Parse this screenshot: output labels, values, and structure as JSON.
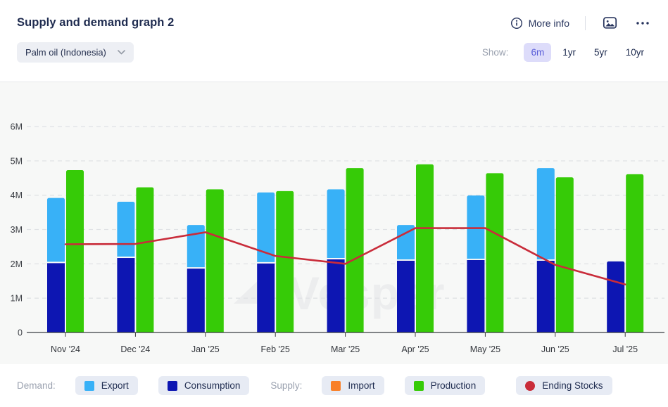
{
  "header": {
    "title": "Supply and demand graph 2",
    "more_info_label": "More info",
    "commodity_selector": {
      "value": "Palm oil (Indonesia)"
    },
    "show_label": "Show:",
    "ranges": [
      {
        "label": "6m",
        "selected": true
      },
      {
        "label": "1yr",
        "selected": false
      },
      {
        "label": "5yr",
        "selected": false
      },
      {
        "label": "10yr",
        "selected": false
      }
    ]
  },
  "watermark": {
    "text": "Vesper"
  },
  "colors": {
    "export": "#38b1f7",
    "consumption": "#0d16b2",
    "production": "#36cb07",
    "import": "#f98029",
    "ending_stocks": "#c92c3a",
    "gridline": "#e0e2e5",
    "axis": "#3a3d42",
    "tick_text": "#3c3f45",
    "chart_bg": "#f7f8f7"
  },
  "chart_data": {
    "type": "bar",
    "subtype": "stacked demand bars + production bar, with ending-stocks line overlay",
    "unit": "M",
    "categories": [
      "Nov '24",
      "Dec '24",
      "Jan '25",
      "Feb '25",
      "Mar '25",
      "Apr '25",
      "May '25",
      "Jun '25",
      "Jul '25"
    ],
    "series": [
      {
        "name": "Consumption",
        "type": "bar",
        "stack": "demand",
        "color_key": "consumption",
        "values": [
          2.02,
          2.17,
          1.86,
          2.01,
          2.13,
          2.09,
          2.11,
          2.09,
          2.07
        ]
      },
      {
        "name": "Export",
        "type": "bar",
        "stack": "demand",
        "color_key": "export",
        "values": [
          1.9,
          1.64,
          1.27,
          2.07,
          2.04,
          1.04,
          1.88,
          2.7,
          0
        ]
      },
      {
        "name": "Import",
        "type": "bar",
        "stack": "supply",
        "color_key": "import",
        "values": [
          0,
          0,
          0,
          0,
          0,
          0,
          0,
          0,
          0
        ]
      },
      {
        "name": "Production",
        "type": "bar",
        "stack": "supply",
        "color_key": "production",
        "values": [
          4.73,
          4.23,
          4.17,
          4.12,
          4.79,
          4.9,
          4.64,
          4.52,
          4.61
        ]
      },
      {
        "name": "Ending Stocks",
        "type": "line",
        "color_key": "ending_stocks",
        "values": [
          2.57,
          2.58,
          2.92,
          2.23,
          2.0,
          3.04,
          3.04,
          1.97,
          1.4
        ]
      }
    ],
    "ylim": [
      0,
      6
    ],
    "yticks": [
      "0",
      "1M",
      "2M",
      "3M",
      "4M",
      "5M",
      "6M"
    ],
    "grid": "horizontal dashed",
    "legend_position": "bottom"
  },
  "legend": {
    "demand_label": "Demand:",
    "supply_label": "Supply:",
    "items": [
      {
        "label": "Export",
        "color_key": "export",
        "shape": "square"
      },
      {
        "label": "Consumption",
        "color_key": "consumption",
        "shape": "square"
      },
      {
        "label": "Import",
        "color_key": "import",
        "shape": "square"
      },
      {
        "label": "Production",
        "color_key": "production",
        "shape": "square"
      },
      {
        "label": "Ending Stocks",
        "color_key": "ending_stocks",
        "shape": "circle"
      }
    ]
  }
}
